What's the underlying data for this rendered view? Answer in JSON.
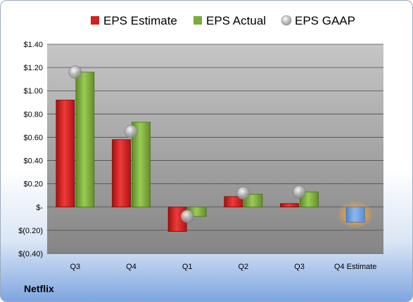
{
  "company": "Netflix",
  "legend": [
    {
      "label": "EPS Estimate",
      "color": "#d42020",
      "marker": "square"
    },
    {
      "label": "EPS Actual",
      "color": "#7aac38",
      "marker": "square"
    },
    {
      "label": "EPS GAAP",
      "color": "#a9a9a9",
      "marker": "circle"
    }
  ],
  "chart_data": {
    "type": "bar",
    "categories": [
      "Q3",
      "Q4",
      "Q1",
      "Q2",
      "Q3",
      "Q4 Estimate"
    ],
    "series": [
      {
        "name": "EPS Estimate",
        "color": "#d42020",
        "values": [
          0.92,
          0.58,
          -0.21,
          0.09,
          0.03,
          null
        ]
      },
      {
        "name": "EPS Actual",
        "color": "#7aac38",
        "values": [
          1.16,
          0.73,
          -0.08,
          0.11,
          0.13,
          null
        ]
      },
      {
        "name": "EPS GAAP",
        "color": "#a9a9a9",
        "type": "scatter",
        "values": [
          1.16,
          0.65,
          -0.08,
          0.12,
          0.13,
          null
        ]
      },
      {
        "name": "",
        "color": "#6a9ee0",
        "values": [
          null,
          null,
          null,
          null,
          null,
          -0.13
        ]
      }
    ],
    "yticks": [
      "$1.40",
      "$1.20",
      "$1.00",
      "$0.80",
      "$0.60",
      "$0.40",
      "$0.20",
      "$-",
      "$(0.20)",
      "$(0.40)"
    ],
    "ylim": [
      -0.4,
      1.4
    ],
    "grid": true,
    "legend_position": "top"
  }
}
